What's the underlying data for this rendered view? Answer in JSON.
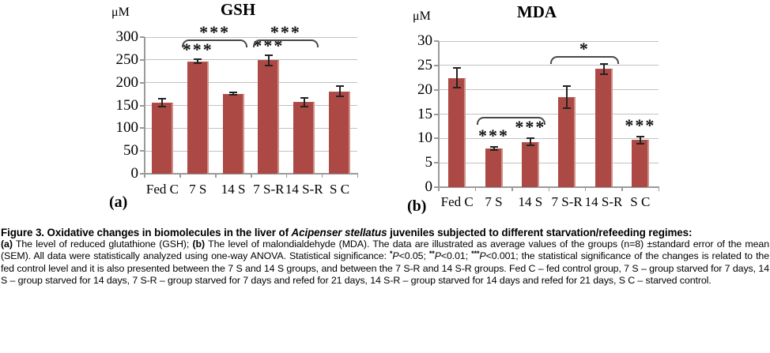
{
  "chart_data": [
    {
      "type": "bar",
      "panel_label": "(a)",
      "title": "GSH",
      "ylabel": "μM",
      "categories": [
        "Fed C",
        "7 S",
        "14 S",
        "7 S-R",
        "14 S-R",
        "S C"
      ],
      "values": [
        156,
        247,
        176,
        249,
        157,
        181
      ],
      "errors": [
        11,
        6,
        4,
        13,
        11,
        13
      ],
      "ylim": [
        0,
        300
      ],
      "yticks": [
        0,
        50,
        100,
        150,
        200,
        250,
        300
      ],
      "grid": true,
      "bar_color": "#ac4945",
      "significance": {
        "above_bars": [
          {
            "category": "7 S",
            "label": "***"
          },
          {
            "category": "7 S-R",
            "label": "***"
          }
        ],
        "brackets": [
          {
            "from": "7 S",
            "to": "14 S",
            "label": "***"
          },
          {
            "from": "7 S-R",
            "to": "14 S-R",
            "label": "***"
          }
        ]
      }
    },
    {
      "type": "bar",
      "panel_label": "(b)",
      "title": "MDA",
      "ylabel": "μM",
      "categories": [
        "Fed C",
        "7 S",
        "14 S",
        "7 S-R",
        "14 S-R",
        "S C"
      ],
      "values": [
        22.4,
        8.0,
        9.3,
        18.5,
        24.3,
        9.7
      ],
      "errors": [
        2.2,
        0.5,
        0.9,
        2.5,
        1.2,
        0.9
      ],
      "ylim": [
        0,
        30
      ],
      "yticks": [
        0,
        5,
        10,
        15,
        20,
        25,
        30
      ],
      "grid": true,
      "bar_color": "#ac4945",
      "significance": {
        "above_bars": [
          {
            "category": "7 S",
            "label": "***"
          },
          {
            "category": "14 S",
            "label": "***"
          },
          {
            "category": "S C",
            "label": "***"
          }
        ],
        "brackets": [
          {
            "from": "7 S",
            "to": "14 S",
            "label": ""
          },
          {
            "from": "7 S-R",
            "to": "14 S-R",
            "label": "*"
          }
        ]
      }
    }
  ],
  "caption": {
    "paragraphs": [
      {
        "style": "head",
        "segments": [
          {
            "text": "Figure 3. Oxidative changes in biomolecules in the liver of ",
            "bold": true
          },
          {
            "text": "Acipenser stellatus",
            "bold": true,
            "italic": true
          },
          {
            "text": " juveniles subjected to different starvation/refeeding regimes:",
            "bold": true
          }
        ]
      },
      {
        "style": "body",
        "segments": [
          {
            "text": "(a)",
            "bold": true
          },
          {
            "text": " The level of reduced glutathione (GSH); "
          },
          {
            "text": "(b)",
            "bold": true
          },
          {
            "text": " The level of malondialdehyde (MDA). The data are illustrated as average values of the groups (n=8) ±standard error of the mean (SEM). All data were statistically analyzed using one-way ANOVA. Statistical significance: "
          },
          {
            "text": "*",
            "sup": true,
            "bold": true
          },
          {
            "text": "P",
            "italic": true
          },
          {
            "text": "<0.05; "
          },
          {
            "text": "**",
            "sup": true,
            "bold": true
          },
          {
            "text": "P",
            "italic": true
          },
          {
            "text": "<0.01; "
          },
          {
            "text": "***",
            "sup": true,
            "bold": true
          },
          {
            "text": "P",
            "italic": true
          },
          {
            "text": "<0.001; the statistical significance of the changes is related to the fed control level and it is also presented between the 7 S and 14 S groups, and between the 7 S-R and 14 S-R groups. Fed C – fed control group, 7 S – group starved for 7 days, 14 S – group starved for 14 days, 7 S-R – group starved for 7 days and refed for 21 days, 14 S-R – group starved for 14 days and refed for 21 days, S C – starved control."
          }
        ]
      }
    ]
  }
}
